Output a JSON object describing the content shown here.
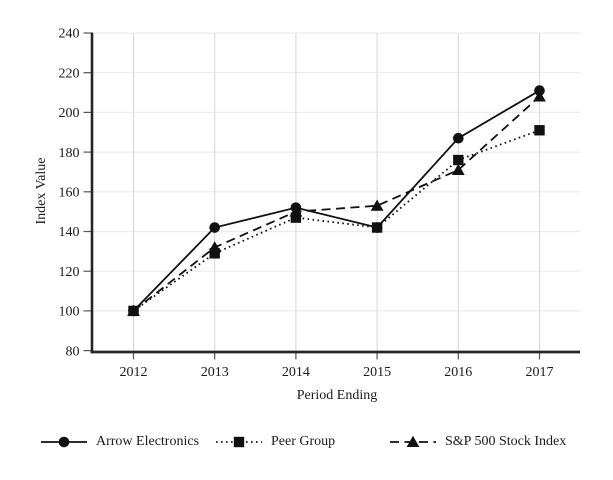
{
  "chart_data": {
    "type": "line",
    "title": "",
    "xlabel": "Period Ending",
    "ylabel": "Index Value",
    "categories": [
      "2012",
      "2013",
      "2014",
      "2015",
      "2016",
      "2017"
    ],
    "ylim": [
      80,
      240
    ],
    "ytick_interval": 20,
    "yticks": [
      80,
      100,
      120,
      140,
      160,
      180,
      200,
      220,
      240
    ],
    "grid": true,
    "legend_position": "bottom",
    "series": [
      {
        "name": "Arrow Electronics",
        "marker": "circle",
        "line_style": "solid",
        "values": [
          100,
          142,
          152,
          142,
          187,
          211
        ]
      },
      {
        "name": "Peer Group",
        "marker": "square",
        "line_style": "dotted",
        "values": [
          100,
          129,
          147,
          142,
          176,
          191
        ]
      },
      {
        "name": "S&P 500 Stock Index",
        "marker": "triangle",
        "line_style": "dashed",
        "values": [
          100,
          132,
          150,
          153,
          171,
          208
        ]
      }
    ],
    "colors": {
      "series": "#111111",
      "grid_horizontal": "#ececec",
      "grid_vertical": "#d6d6d6",
      "axis": "#262626",
      "tick": "#555555",
      "text": "#1a1a1a",
      "background": "#ffffff"
    }
  }
}
